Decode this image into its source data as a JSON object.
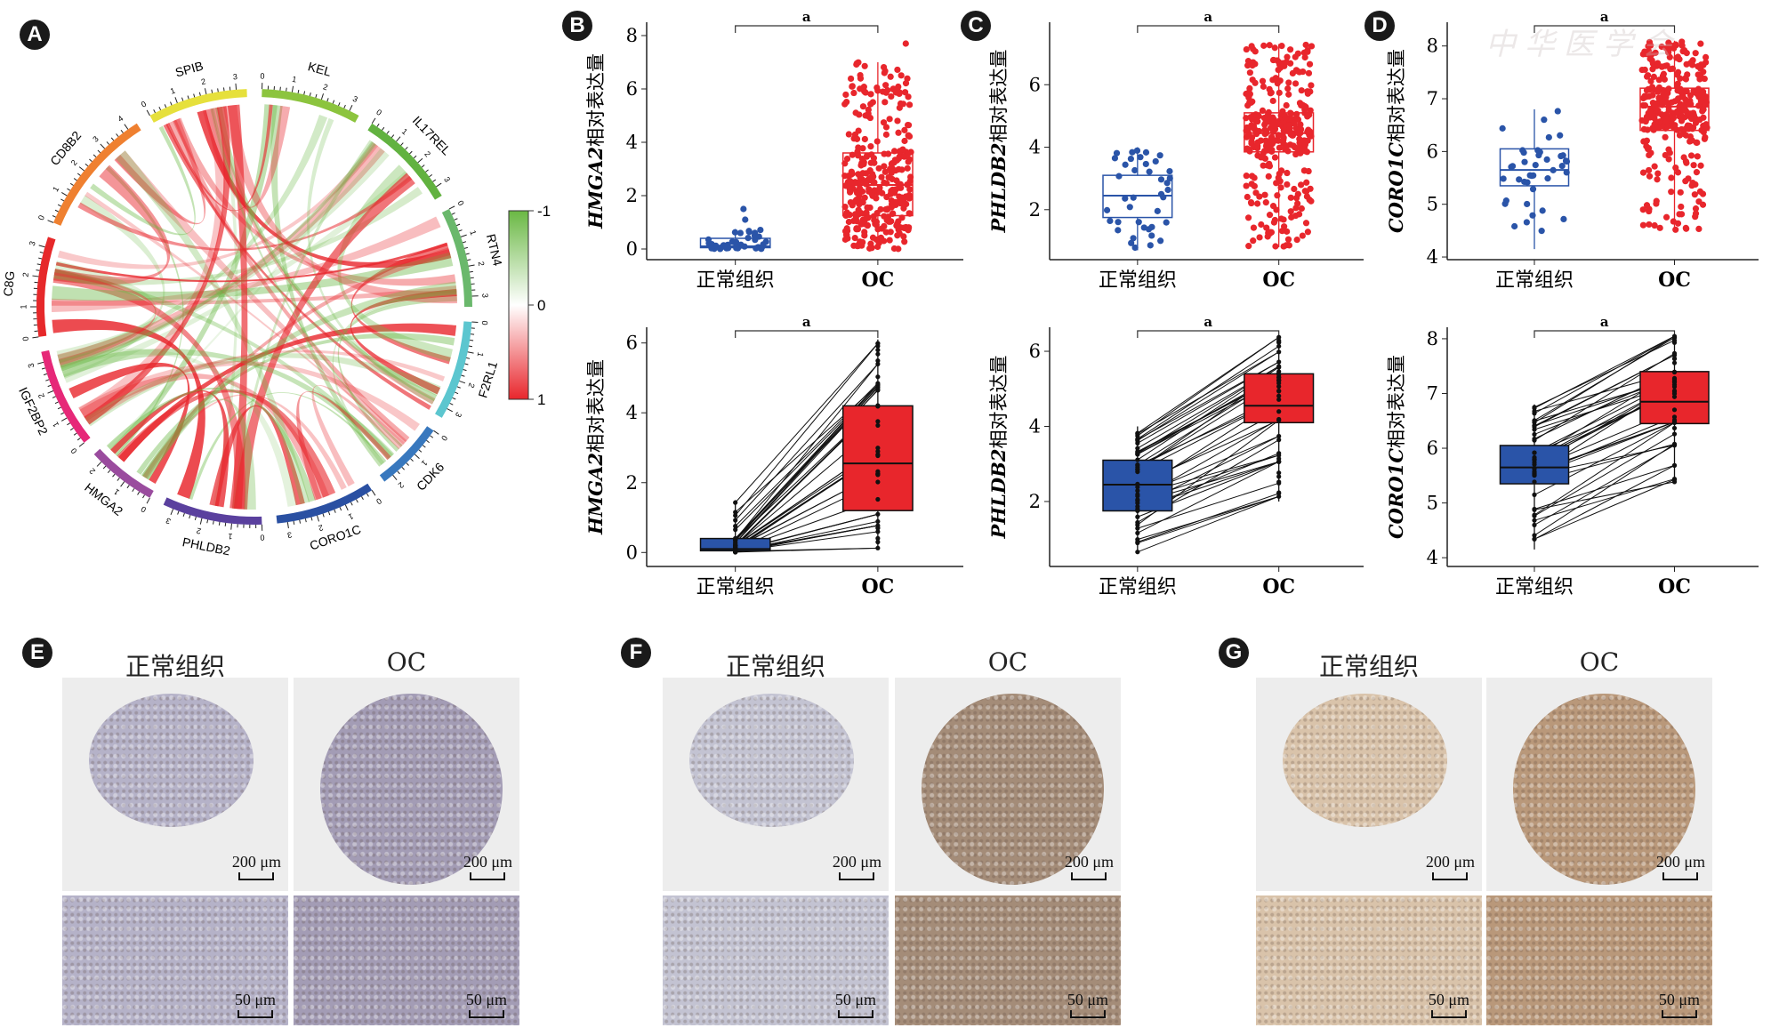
{
  "panel_labels": [
    "A",
    "B",
    "C",
    "D",
    "E",
    "F",
    "G"
  ],
  "watermark": "中华医学会",
  "chart_data": [
    {
      "panel": "A",
      "type": "chord",
      "sectors": [
        {
          "name": "SPIB",
          "max": 3,
          "color": "#e6e03c"
        },
        {
          "name": "KEL",
          "max": 3,
          "color": "#8cc43e"
        },
        {
          "name": "IL17REL",
          "max": 3,
          "color": "#62b240"
        },
        {
          "name": "RTN4",
          "max": 3,
          "color": "#6ab86c"
        },
        {
          "name": "F2RL1",
          "max": 3,
          "color": "#5cc6cf"
        },
        {
          "name": "CDK6",
          "max": 2,
          "color": "#3878be"
        },
        {
          "name": "CORO1C",
          "max": 3,
          "color": "#2a50a2"
        },
        {
          "name": "PHLDB2",
          "max": 3,
          "color": "#5a409e"
        },
        {
          "name": "HMGA2",
          "max": 2,
          "color": "#9a4c9e"
        },
        {
          "name": "IGF2BP2",
          "max": 3,
          "color": "#e62878"
        },
        {
          "name": "C8G",
          "max": 3,
          "color": "#e6282a"
        },
        {
          "name": "CD8B2",
          "max": 4,
          "color": "#ef8030"
        }
      ],
      "colorscale": {
        "ticks": [
          "-1",
          "0",
          "1"
        ],
        "colors": {
          "neg": "#6ab844",
          "zero": "#ffffff",
          "pos": "#e8262c"
        }
      }
    },
    {
      "panel": "B",
      "type": "box",
      "style": "jitter",
      "categories": [
        "正常组织",
        "OC"
      ],
      "ylabel_italic": "HMGA2",
      "ylabel_rest": "相对表达量",
      "ylim": [
        -0.4,
        8.5
      ],
      "yticks": [
        0,
        2,
        4,
        6,
        8
      ],
      "significance": "a",
      "boxes": [
        {
          "q1": 0.05,
          "median": 0.1,
          "q3": 0.4,
          "min": 0.0,
          "max": 0.75,
          "outliers": [
            1.1,
            1.5
          ]
        },
        {
          "q1": 1.25,
          "median": 2.4,
          "q3": 3.6,
          "min": 0.0,
          "max": 7.0,
          "outliers": [
            7.7
          ]
        }
      ]
    },
    {
      "panel": "C",
      "type": "box",
      "style": "jitter",
      "categories": [
        "正常组织",
        "OC"
      ],
      "ylabel_italic": "PHLDB2",
      "ylabel_rest": "相对表达量",
      "ylim": [
        0.4,
        8.0
      ],
      "yticks": [
        2,
        4,
        6
      ],
      "significance": "a",
      "boxes": [
        {
          "q1": 1.75,
          "median": 2.45,
          "q3": 3.1,
          "min": 0.7,
          "max": 4.0,
          "outliers": []
        },
        {
          "q1": 3.85,
          "median": 4.45,
          "q3": 5.1,
          "min": 0.8,
          "max": 7.3,
          "outliers": []
        }
      ]
    },
    {
      "panel": "D",
      "type": "box",
      "style": "jitter",
      "categories": [
        "正常组织",
        "OC"
      ],
      "ylabel_italic": "CORO1C",
      "ylabel_rest": "相对表达量",
      "ylim": [
        3.95,
        8.45
      ],
      "yticks": [
        4,
        5,
        6,
        7,
        8
      ],
      "significance": "a",
      "boxes": [
        {
          "q1": 5.35,
          "median": 5.65,
          "q3": 6.05,
          "min": 4.15,
          "max": 6.8,
          "outliers": []
        },
        {
          "q1": 6.4,
          "median": 6.85,
          "q3": 7.2,
          "min": 4.5,
          "max": 8.1,
          "outliers": []
        }
      ]
    },
    {
      "panel": "B",
      "type": "box",
      "style": "paired",
      "categories": [
        "正常组织",
        "OC"
      ],
      "ylabel_italic": "HMGA2",
      "ylabel_rest": "相对表达量",
      "ylim": [
        -0.4,
        6.45
      ],
      "yticks": [
        0,
        2,
        4,
        6
      ],
      "significance": "a",
      "boxes": [
        {
          "q1": 0.05,
          "median": 0.1,
          "q3": 0.4,
          "min": 0.0,
          "max": 1.5,
          "outliers": []
        },
        {
          "q1": 1.2,
          "median": 2.55,
          "q3": 4.2,
          "min": 0.1,
          "max": 6.1,
          "outliers": []
        }
      ]
    },
    {
      "panel": "C",
      "type": "box",
      "style": "paired",
      "categories": [
        "正常组织",
        "OC"
      ],
      "ylabel_italic": "PHLDB2",
      "ylabel_rest": "相对表达量",
      "ylim": [
        0.27,
        6.64
      ],
      "yticks": [
        2,
        4,
        6
      ],
      "significance": "a",
      "boxes": [
        {
          "q1": 1.75,
          "median": 2.45,
          "q3": 3.1,
          "min": 0.6,
          "max": 4.0,
          "outliers": []
        },
        {
          "q1": 4.1,
          "median": 4.55,
          "q3": 5.4,
          "min": 2.0,
          "max": 6.4,
          "outliers": []
        }
      ]
    },
    {
      "panel": "D",
      "type": "box",
      "style": "paired",
      "categories": [
        "正常组织",
        "OC"
      ],
      "ylabel_italic": "CORO1C",
      "ylabel_rest": "相对表达量",
      "ylim": [
        3.84,
        8.21
      ],
      "yticks": [
        4,
        5,
        6,
        7,
        8
      ],
      "significance": "a",
      "boxes": [
        {
          "q1": 5.35,
          "median": 5.65,
          "q3": 6.05,
          "min": 4.15,
          "max": 6.8,
          "outliers": []
        },
        {
          "q1": 6.45,
          "median": 6.85,
          "q3": 7.4,
          "min": 5.35,
          "max": 8.05,
          "outliers": []
        }
      ]
    }
  ],
  "colors": {
    "normal": "#2a54a8",
    "tumor": "#e8262c"
  },
  "ihc": {
    "column_headers": [
      "正常组织",
      "OC"
    ],
    "scale_low": "200 μm",
    "scale_high": "50 μm",
    "stain": [
      {
        "panel": "E",
        "normal": "#b5b2c8",
        "tumor": "#a39cb5"
      },
      {
        "panel": "F",
        "normal": "#c3c3d2",
        "tumor": "#a48c78"
      },
      {
        "panel": "G",
        "normal": "#d9c3aa",
        "tumor": "#b9987a"
      }
    ]
  }
}
